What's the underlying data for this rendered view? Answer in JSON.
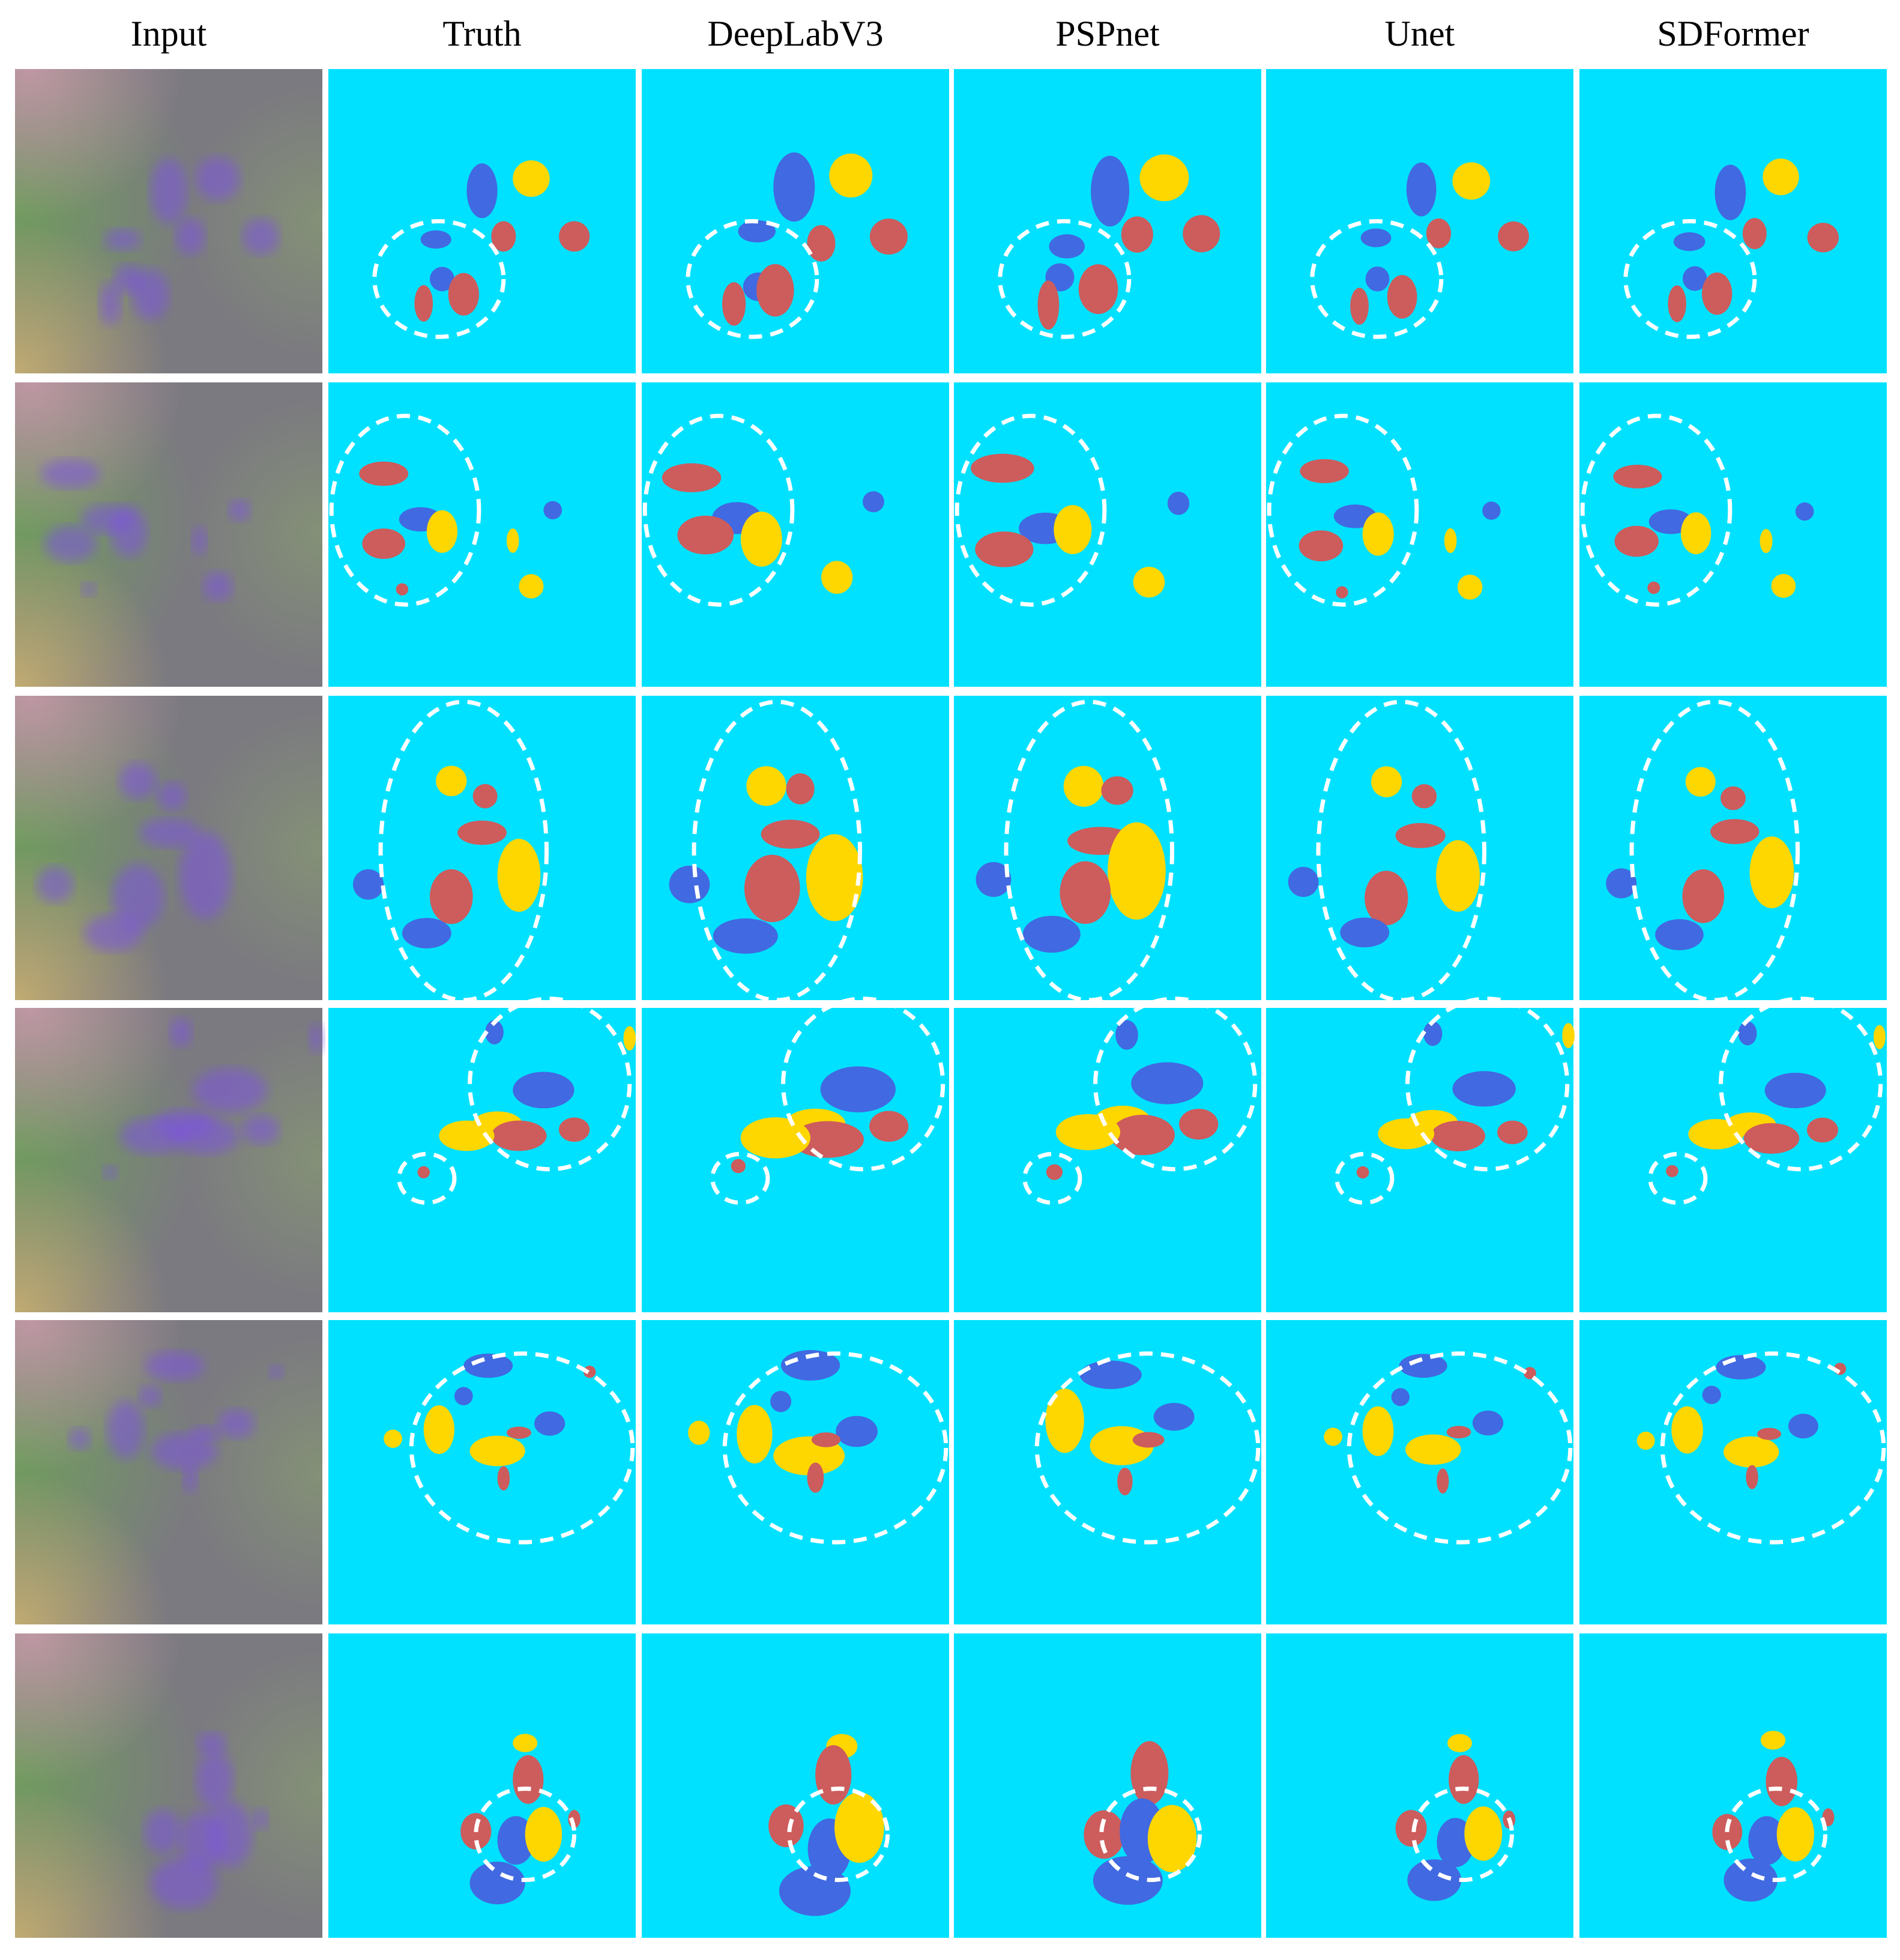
{
  "header": {
    "columns": [
      "Input",
      "Truth",
      "DeepLabV3",
      "PSPnet",
      "Unet",
      "SDFormer"
    ]
  }
}
